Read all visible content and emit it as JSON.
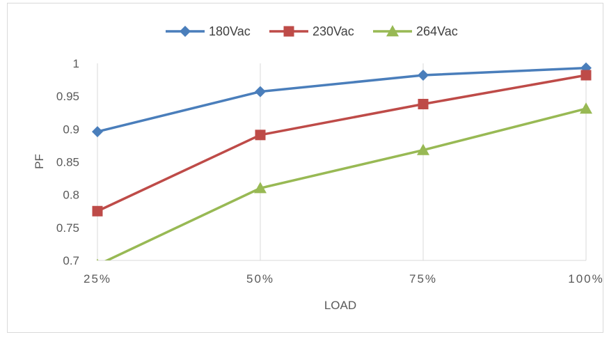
{
  "chart_data": {
    "type": "line",
    "title": "",
    "xlabel": "LOAD",
    "ylabel": "PF",
    "categories": [
      "25%",
      "50%",
      "75%",
      "100%"
    ],
    "ylim": [
      0.7,
      1
    ],
    "yticks": [
      "0.7",
      "0.75",
      "0.8",
      "0.85",
      "0.9",
      "0.95",
      "1"
    ],
    "grid": "vertical",
    "legend_position": "top",
    "series": [
      {
        "name": "180Vac",
        "values": [
          0.896,
          0.957,
          0.982,
          0.993
        ],
        "color": "#4a7ebb",
        "marker": "diamond"
      },
      {
        "name": "230Vac",
        "values": [
          0.775,
          0.891,
          0.938,
          0.982
        ],
        "color": "#be4b48",
        "marker": "square"
      },
      {
        "name": "264Vac",
        "values": [
          0.693,
          0.81,
          0.868,
          0.931
        ],
        "color": "#98b954",
        "marker": "triangle"
      }
    ]
  }
}
